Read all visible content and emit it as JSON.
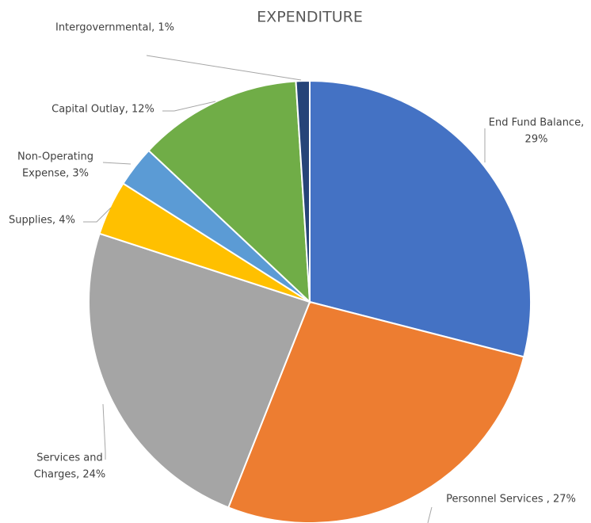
{
  "chart_data": {
    "type": "pie",
    "title": "EXPENDITURE",
    "values": [
      29,
      27,
      24,
      4,
      3,
      12,
      1
    ],
    "value_labels": [
      [
        "End Fund Balance,",
        "29%"
      ],
      [
        "Personnel Services , 27%"
      ],
      [
        "Services and",
        "Charges, 24%"
      ],
      [
        "Supplies, 4%"
      ],
      [
        "Non-Operating",
        "Expense, 3%"
      ],
      [
        "Capital Outlay, 12%"
      ],
      [
        "Intergovernmental, 1%"
      ]
    ],
    "colors": [
      "#4472c4",
      "#ed7d31",
      "#a5a5a5",
      "#ffc000",
      "#5b9bd5",
      "#70ad47",
      "#264478"
    ]
  }
}
